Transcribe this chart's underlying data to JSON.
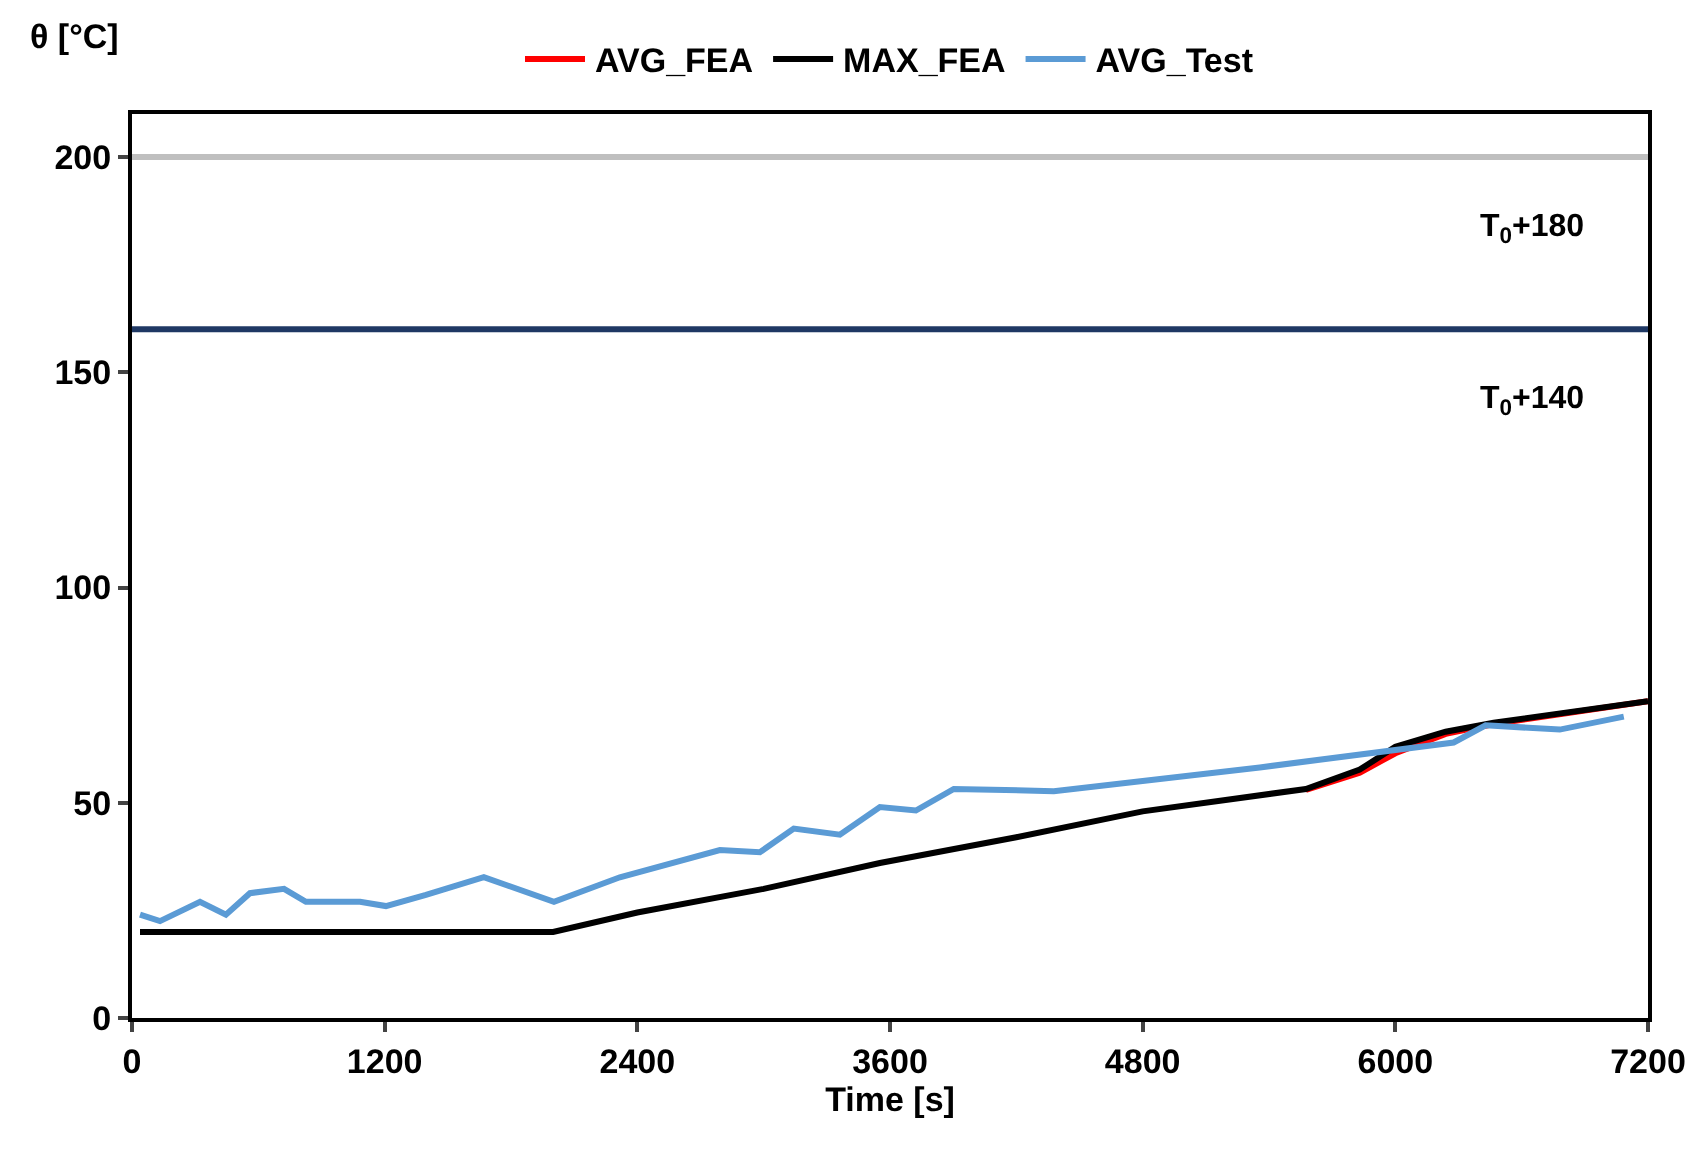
{
  "chart_data": {
    "type": "line",
    "xlabel": "Time [s]",
    "ylabel": "θ [°C]",
    "xlim": [
      0,
      7200
    ],
    "ylim": [
      0,
      210
    ],
    "xticks": [
      0,
      1200,
      2400,
      3600,
      4800,
      6000,
      7200
    ],
    "yticks": [
      0,
      50,
      100,
      150,
      200
    ],
    "grid": false,
    "legend": "top",
    "marker": "none",
    "line_style": "solid",
    "series": [
      {
        "name": "AVG_FEA",
        "color": "#ff0000",
        "x": [
          5575,
          5831,
          6000,
          6239,
          6467,
          7200
        ],
        "values": [
          53,
          57,
          61.5,
          66,
          68.3,
          73.6
        ]
      },
      {
        "name": "MAX_FEA",
        "color": "#000000",
        "x": [
          38,
          2000,
          2400,
          3000,
          3552,
          4200,
          4800,
          5575,
          5831,
          6000,
          6239,
          6467,
          7200
        ],
        "values": [
          20,
          20,
          24.5,
          30,
          36,
          42,
          48,
          53.2,
          57.7,
          63,
          66.5,
          68.6,
          73.6
        ]
      },
      {
        "name": "AVG_Test",
        "color": "#5b9bd5",
        "x": [
          38,
          133,
          323,
          446,
          560,
          722,
          826,
          1083,
          1206,
          1396,
          1671,
          2004,
          2317,
          2792,
          2982,
          3143,
          3362,
          3552,
          3723,
          3903,
          4378,
          5356,
          6277,
          6429,
          6781,
          7085
        ],
        "values": [
          24,
          22.5,
          27,
          24,
          29,
          30,
          27,
          27,
          26,
          28.6,
          32.7,
          27,
          32.7,
          39,
          38.5,
          44,
          42.6,
          49,
          48.2,
          53.2,
          52.7,
          58.2,
          64,
          68,
          67,
          70
        ]
      }
    ],
    "ref_lines": [
      {
        "axis": "y",
        "value": 200,
        "color": "#bfbfbf",
        "label": "T$_{0}$+180"
      },
      {
        "axis": "y",
        "value": 160,
        "color": "#1f3864",
        "label": "T$_{0}$+140"
      }
    ]
  }
}
